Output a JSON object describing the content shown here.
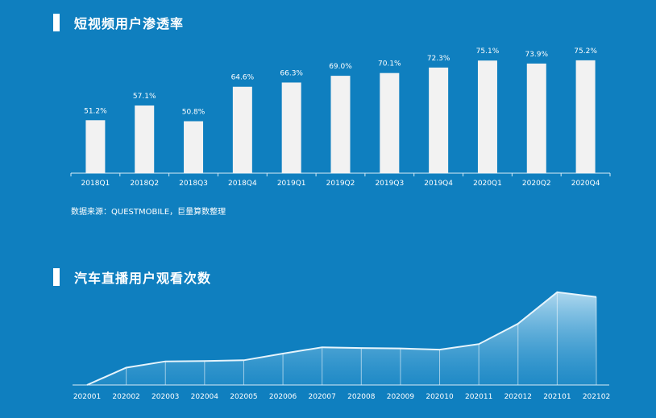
{
  "chart1": {
    "title": "短视频用户渗透率",
    "source": "数据来源：QUESTMOBILE，巨量算数整理",
    "chart_data": {
      "type": "bar",
      "categories": [
        "2018Q1",
        "2018Q2",
        "2018Q3",
        "2018Q4",
        "2019Q1",
        "2019Q2",
        "2019Q3",
        "2019Q4",
        "2020Q1",
        "2020Q2",
        "2020Q4"
      ],
      "values": [
        51.2,
        57.1,
        50.8,
        64.6,
        66.3,
        69.0,
        70.1,
        72.3,
        75.1,
        73.9,
        75.2
      ],
      "value_labels": [
        "51.2%",
        "57.1%",
        "50.8%",
        "64.6%",
        "66.3%",
        "69.0%",
        "70.1%",
        "72.3%",
        "75.1%",
        "73.9%",
        "75.2%"
      ],
      "unit": "%",
      "bar_color": "#f2f2f2",
      "ylim": [
        30,
        80
      ]
    }
  },
  "chart2": {
    "title": "汽车直播用户观看次数",
    "chart_data": {
      "type": "area",
      "categories": [
        "202001",
        "202002",
        "202003",
        "202004",
        "202005",
        "202006",
        "202007",
        "202008",
        "202009",
        "202010",
        "202011",
        "202012",
        "202101",
        "202102"
      ],
      "values": [
        0,
        22,
        30,
        30.5,
        31.5,
        40,
        48,
        47,
        46.5,
        45,
        52,
        78,
        118,
        112
      ],
      "ylim": [
        0,
        125
      ],
      "fill_color": "#a9d6ef"
    }
  }
}
